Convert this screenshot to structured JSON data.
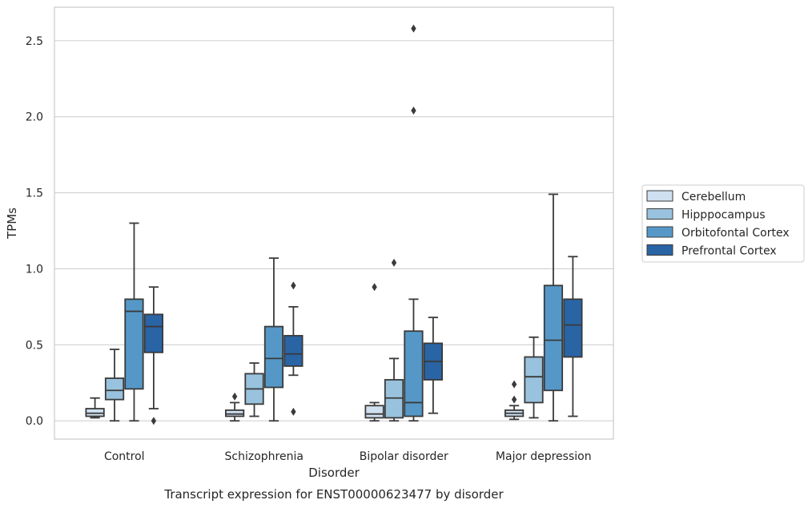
{
  "chart_data": {
    "type": "box",
    "title": "",
    "caption": "Transcript expression for ENST00000623477 by disorder",
    "xlabel": "Disorder",
    "ylabel": "TPMs",
    "ylim": [
      -0.12,
      2.72
    ],
    "yticks": [
      0.0,
      0.5,
      1.0,
      1.5,
      2.0,
      2.5
    ],
    "ytick_labels": [
      "0.0",
      "0.5",
      "1.0",
      "1.5",
      "2.0",
      "2.5"
    ],
    "grid": "horizontal",
    "legend_position": "right",
    "categories": [
      "Control",
      "Schizophrenia",
      "Bipolar disorder",
      "Major depression"
    ],
    "series": [
      {
        "name": "Cerebellum",
        "color": "#cfe0f0",
        "boxes": [
          {
            "whisker_low": 0.02,
            "q1": 0.03,
            "median": 0.05,
            "q3": 0.08,
            "whisker_high": 0.15,
            "outliers": []
          },
          {
            "whisker_low": 0.0,
            "q1": 0.03,
            "median": 0.045,
            "q3": 0.07,
            "whisker_high": 0.12,
            "outliers": [
              0.16
            ]
          },
          {
            "whisker_low": 0.0,
            "q1": 0.02,
            "median": 0.045,
            "q3": 0.1,
            "whisker_high": 0.12,
            "outliers": [
              0.88
            ]
          },
          {
            "whisker_low": 0.01,
            "q1": 0.03,
            "median": 0.05,
            "q3": 0.07,
            "whisker_high": 0.1,
            "outliers": [
              0.14,
              0.24
            ]
          }
        ]
      },
      {
        "name": "Hipppocampus",
        "color": "#98c2dd",
        "boxes": [
          {
            "whisker_low": 0.0,
            "q1": 0.14,
            "median": 0.2,
            "q3": 0.28,
            "whisker_high": 0.47,
            "outliers": []
          },
          {
            "whisker_low": 0.03,
            "q1": 0.11,
            "median": 0.21,
            "q3": 0.31,
            "whisker_high": 0.38,
            "outliers": []
          },
          {
            "whisker_low": 0.0,
            "q1": 0.02,
            "median": 0.15,
            "q3": 0.27,
            "whisker_high": 0.41,
            "outliers": [
              1.04
            ]
          },
          {
            "whisker_low": 0.02,
            "q1": 0.12,
            "median": 0.29,
            "q3": 0.42,
            "whisker_high": 0.55,
            "outliers": []
          }
        ]
      },
      {
        "name": "Orbitofontal Cortex",
        "color": "#5598c8",
        "boxes": [
          {
            "whisker_low": 0.0,
            "q1": 0.21,
            "median": 0.72,
            "q3": 0.8,
            "whisker_high": 1.3,
            "outliers": []
          },
          {
            "whisker_low": 0.0,
            "q1": 0.22,
            "median": 0.41,
            "q3": 0.62,
            "whisker_high": 1.07,
            "outliers": []
          },
          {
            "whisker_low": 0.0,
            "q1": 0.03,
            "median": 0.12,
            "q3": 0.59,
            "whisker_high": 0.8,
            "outliers": [
              2.04,
              2.58
            ]
          },
          {
            "whisker_low": 0.0,
            "q1": 0.2,
            "median": 0.53,
            "q3": 0.89,
            "whisker_high": 1.49,
            "outliers": []
          }
        ]
      },
      {
        "name": "Prefrontal Cortex",
        "color": "#2964a5",
        "boxes": [
          {
            "whisker_low": 0.08,
            "q1": 0.45,
            "median": 0.62,
            "q3": 0.7,
            "whisker_high": 0.88,
            "outliers": [
              0.0
            ]
          },
          {
            "whisker_low": 0.3,
            "q1": 0.36,
            "median": 0.44,
            "q3": 0.56,
            "whisker_high": 0.75,
            "outliers": [
              0.06,
              0.89
            ]
          },
          {
            "whisker_low": 0.05,
            "q1": 0.27,
            "median": 0.39,
            "q3": 0.51,
            "whisker_high": 0.68,
            "outliers": []
          },
          {
            "whisker_low": 0.03,
            "q1": 0.42,
            "median": 0.63,
            "q3": 0.8,
            "whisker_high": 1.08,
            "outliers": []
          }
        ]
      }
    ]
  }
}
